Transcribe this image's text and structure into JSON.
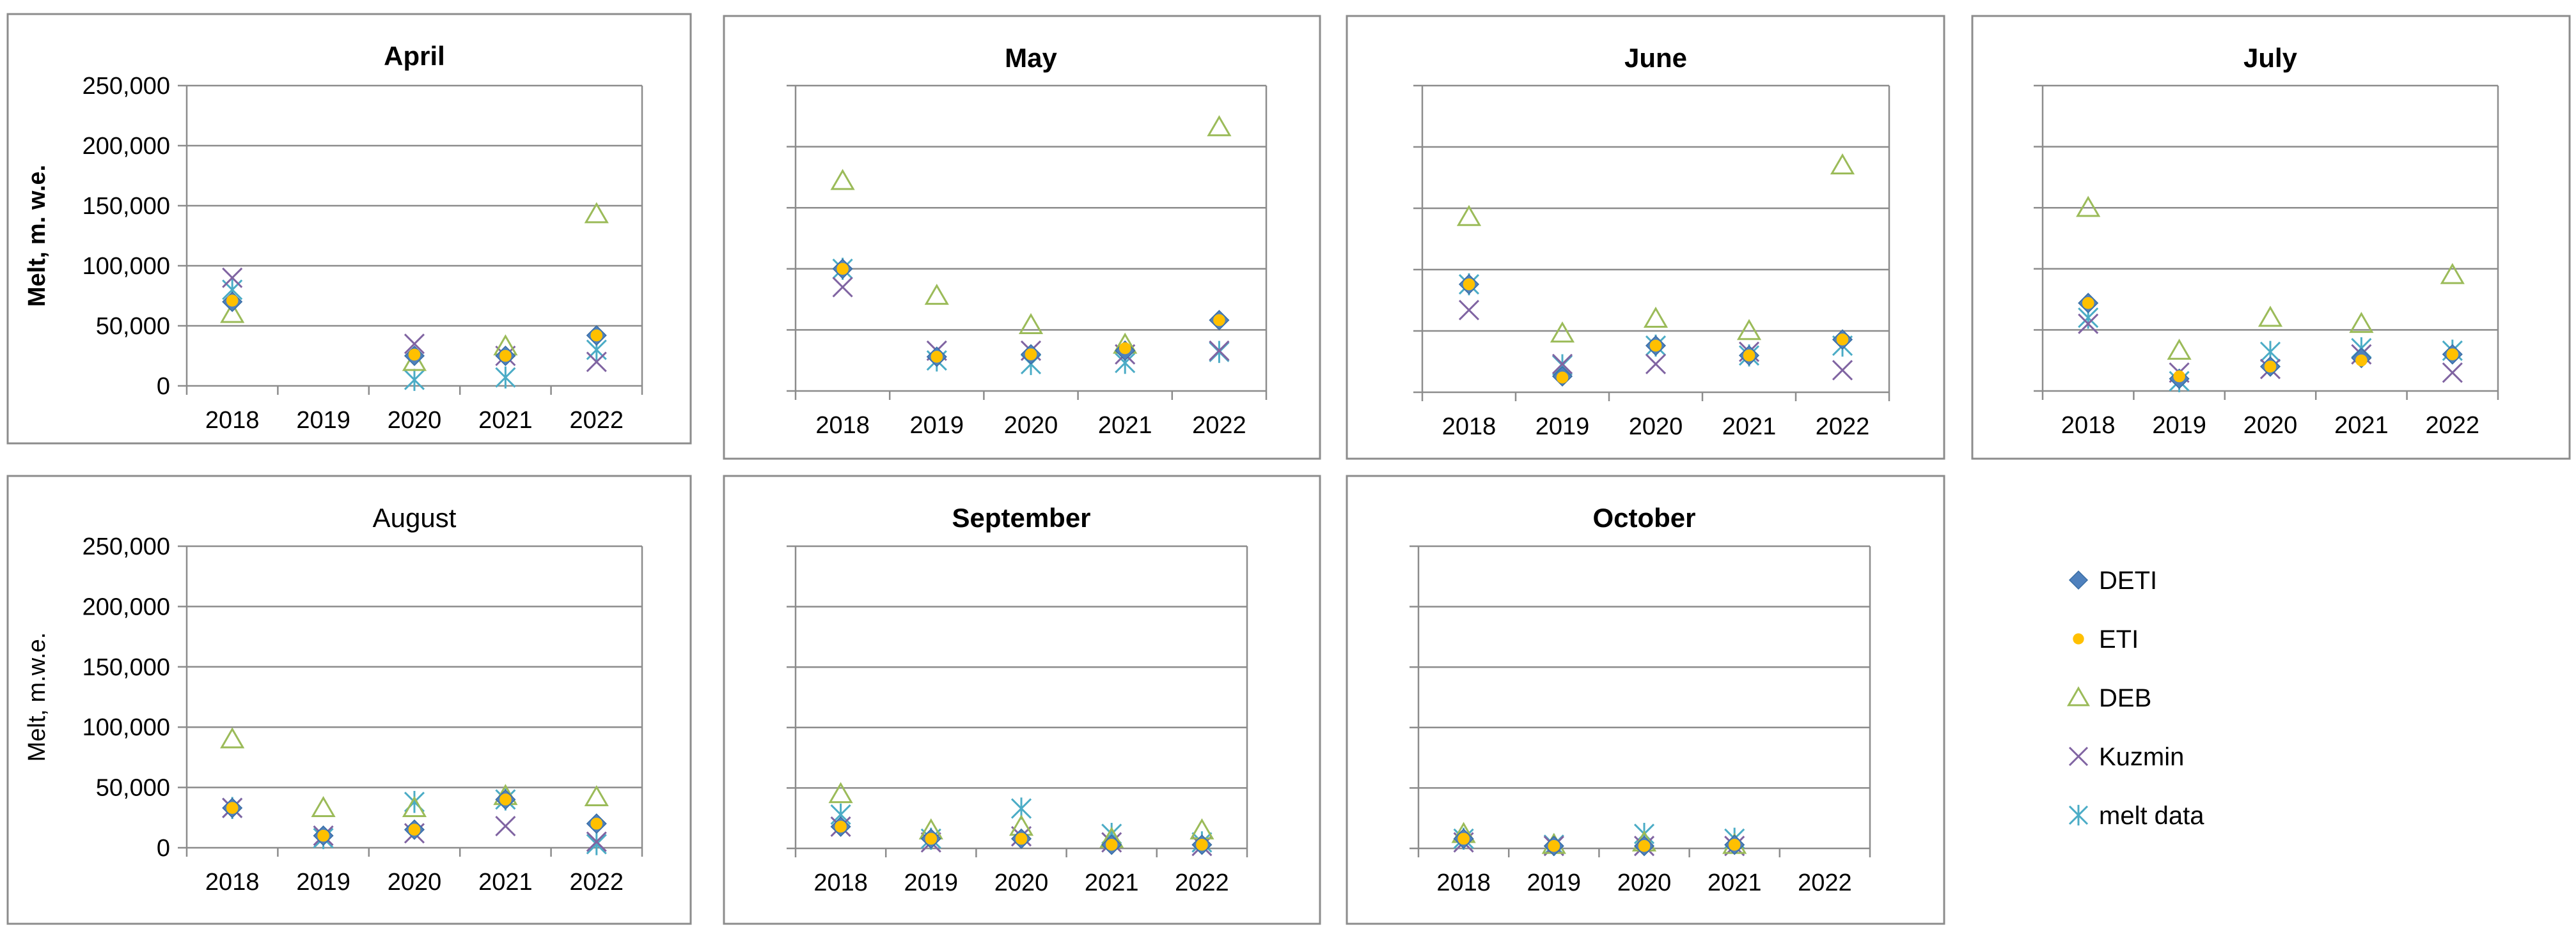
{
  "figure": {
    "legend": [
      {
        "name": "DETI",
        "marker": "diamond",
        "color": "#4F81BD"
      },
      {
        "name": "ETI",
        "marker": "circle",
        "color": "#FFC000"
      },
      {
        "name": "DEB",
        "marker": "triangle",
        "color": "#9BBB59"
      },
      {
        "name": "Kuzmin",
        "marker": "x",
        "color": "#8064A2"
      },
      {
        "name": "melt data",
        "marker": "star",
        "color": "#4BACC6"
      }
    ]
  },
  "chart_data": [
    {
      "type": "scatter",
      "title": "April",
      "title_bold": true,
      "ylabel": "Melt, m. w.e.",
      "y_tick_labels_shown": true,
      "categories": [
        "2018",
        "2019",
        "2020",
        "2021",
        "2022"
      ],
      "ylim": [
        0,
        250000
      ],
      "y_ticks": [
        "0",
        "50,000",
        "100,000",
        "150,000",
        "200,000",
        "250,000"
      ],
      "grid": true,
      "series": [
        {
          "name": "DETI",
          "values": [
            70000,
            null,
            25000,
            25000,
            42000
          ]
        },
        {
          "name": "ETI",
          "values": [
            71000,
            null,
            26000,
            25000,
            42000
          ]
        },
        {
          "name": "DEB",
          "values": [
            60000,
            null,
            20000,
            33000,
            143000
          ]
        },
        {
          "name": "Kuzmin",
          "values": [
            90000,
            null,
            35000,
            25000,
            20000
          ]
        },
        {
          "name": "melt data",
          "values": [
            80000,
            null,
            5000,
            7000,
            30000
          ]
        }
      ]
    },
    {
      "type": "scatter",
      "title": "May",
      "title_bold": true,
      "ylabel": "",
      "y_tick_labels_shown": false,
      "categories": [
        "2018",
        "2019",
        "2020",
        "2021",
        "2022"
      ],
      "ylim": [
        0,
        250000
      ],
      "y_ticks": [
        "0",
        "50,000",
        "100,000",
        "150,000",
        "200,000",
        "250,000"
      ],
      "grid": true,
      "series": [
        {
          "name": "DETI",
          "values": [
            100000,
            28000,
            30000,
            33000,
            58000
          ]
        },
        {
          "name": "ETI",
          "values": [
            100000,
            28000,
            30000,
            35000,
            58000
          ]
        },
        {
          "name": "DEB",
          "values": [
            172000,
            78000,
            54000,
            38000,
            216000
          ]
        },
        {
          "name": "Kuzmin",
          "values": [
            85000,
            33000,
            33000,
            30000,
            33000
          ]
        },
        {
          "name": "melt data",
          "values": [
            100000,
            25000,
            22000,
            23000,
            32000
          ]
        }
      ]
    },
    {
      "type": "scatter",
      "title": "June",
      "title_bold": true,
      "ylabel": "",
      "y_tick_labels_shown": false,
      "categories": [
        "2018",
        "2019",
        "2020",
        "2021",
        "2022"
      ],
      "ylim": [
        0,
        250000
      ],
      "y_ticks": [
        "0",
        "50,000",
        "100,000",
        "150,000",
        "200,000",
        "250,000"
      ],
      "grid": true,
      "series": [
        {
          "name": "DETI",
          "values": [
            88000,
            13000,
            38000,
            30000,
            43000
          ]
        },
        {
          "name": "ETI",
          "values": [
            88000,
            12000,
            38000,
            30000,
            43000
          ]
        },
        {
          "name": "DEB",
          "values": [
            143000,
            48000,
            60000,
            50000,
            185000
          ]
        },
        {
          "name": "Kuzmin",
          "values": [
            67000,
            23000,
            23000,
            33000,
            18000
          ]
        },
        {
          "name": "melt data",
          "values": [
            88000,
            22000,
            38000,
            30000,
            38000
          ]
        }
      ]
    },
    {
      "type": "scatter",
      "title": "July",
      "title_bold": true,
      "ylabel": "",
      "y_tick_labels_shown": false,
      "categories": [
        "2018",
        "2019",
        "2020",
        "2021",
        "2022"
      ],
      "ylim": [
        0,
        250000
      ],
      "y_ticks": [
        "0",
        "50,000",
        "100,000",
        "150,000",
        "200,000",
        "250,000"
      ],
      "grid": true,
      "series": [
        {
          "name": "DETI",
          "values": [
            72000,
            10000,
            20000,
            27000,
            30000
          ]
        },
        {
          "name": "ETI",
          "values": [
            72000,
            12000,
            20000,
            25000,
            30000
          ]
        },
        {
          "name": "DEB",
          "values": [
            150000,
            33000,
            60000,
            55000,
            95000
          ]
        },
        {
          "name": "Kuzmin",
          "values": [
            55000,
            15000,
            18000,
            30000,
            15000
          ]
        },
        {
          "name": "melt data",
          "values": [
            60000,
            8000,
            32000,
            35000,
            33000
          ]
        }
      ]
    },
    {
      "type": "scatter",
      "title": "August",
      "title_bold": false,
      "ylabel": "Melt, m.w.e.",
      "y_tick_labels_shown": true,
      "categories": [
        "2018",
        "2019",
        "2020",
        "2021",
        "2022"
      ],
      "ylim": [
        0,
        250000
      ],
      "y_ticks": [
        "0",
        "50,000",
        "100,000",
        "150,000",
        "200,000",
        "250,000"
      ],
      "grid": true,
      "series": [
        {
          "name": "DETI",
          "values": [
            33000,
            10000,
            15000,
            40000,
            20000
          ]
        },
        {
          "name": "ETI",
          "values": [
            33000,
            10000,
            15000,
            40000,
            20000
          ]
        },
        {
          "name": "DEB",
          "values": [
            90000,
            33000,
            33000,
            43000,
            42000
          ]
        },
        {
          "name": "Kuzmin",
          "values": [
            33000,
            10000,
            12000,
            18000,
            5000
          ]
        },
        {
          "name": "melt data",
          "values": [
            33000,
            8000,
            38000,
            40000,
            3000
          ]
        }
      ]
    },
    {
      "type": "scatter",
      "title": "September",
      "title_bold": true,
      "ylabel": "",
      "y_tick_labels_shown": false,
      "categories": [
        "2018",
        "2019",
        "2020",
        "2021",
        "2022"
      ],
      "ylim": [
        0,
        250000
      ],
      "y_ticks": [
        "0",
        "50,000",
        "100,000",
        "150,000",
        "200,000",
        "250,000"
      ],
      "grid": true,
      "series": [
        {
          "name": "DETI",
          "values": [
            18000,
            8000,
            8000,
            3000,
            3000
          ]
        },
        {
          "name": "ETI",
          "values": [
            18000,
            8000,
            8000,
            3000,
            3000
          ]
        },
        {
          "name": "DEB",
          "values": [
            45000,
            15000,
            18000,
            8000,
            15000
          ]
        },
        {
          "name": "Kuzmin",
          "values": [
            18000,
            5000,
            10000,
            5000,
            2000
          ]
        },
        {
          "name": "melt data",
          "values": [
            28000,
            8000,
            33000,
            12000,
            5000
          ]
        }
      ]
    },
    {
      "type": "scatter",
      "title": "October",
      "title_bold": true,
      "ylabel": "",
      "y_tick_labels_shown": false,
      "categories": [
        "2018",
        "2019",
        "2020",
        "2021",
        "2022"
      ],
      "ylim": [
        0,
        250000
      ],
      "y_ticks": [
        "0",
        "50,000",
        "100,000",
        "150,000",
        "200,000",
        "250,000"
      ],
      "grid": true,
      "series": [
        {
          "name": "DETI",
          "values": [
            8000,
            2000,
            2000,
            3000,
            null
          ]
        },
        {
          "name": "ETI",
          "values": [
            8000,
            2000,
            2000,
            3000,
            null
          ]
        },
        {
          "name": "DEB",
          "values": [
            12000,
            3000,
            5000,
            3000,
            null
          ]
        },
        {
          "name": "Kuzmin",
          "values": [
            5000,
            2000,
            2000,
            2000,
            null
          ]
        },
        {
          "name": "melt data",
          "values": [
            8000,
            3000,
            12000,
            8000,
            null
          ]
        }
      ]
    }
  ]
}
